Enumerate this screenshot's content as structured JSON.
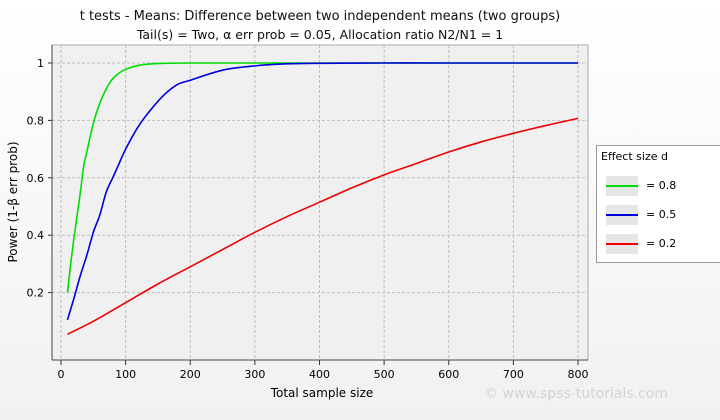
{
  "chart_data": {
    "type": "line",
    "title": "t tests - Means: Difference between two independent means (two groups)",
    "subtitle": "Tail(s) = Two, α err prob = 0.05, Allocation ratio N2/N1 = 1",
    "xlabel": "Total sample size",
    "ylabel": "Power (1-β err prob)",
    "xlim": [
      0,
      800
    ],
    "ylim": [
      0,
      1
    ],
    "xticks": [
      0,
      100,
      200,
      300,
      400,
      500,
      600,
      700,
      800
    ],
    "yticks": [
      0.2,
      0.4,
      0.6,
      0.8,
      1
    ],
    "grid": true,
    "legend_title": "Effect size d",
    "legend_position": "right",
    "series": [
      {
        "name": "= 0.8",
        "color": "#00dd00",
        "x": [
          10,
          15,
          20,
          25,
          30,
          35,
          40,
          50,
          60,
          70,
          80,
          90,
          100,
          120,
          140,
          160,
          200,
          300,
          400,
          600,
          800
        ],
        "y": [
          0.2,
          0.3,
          0.39,
          0.47,
          0.55,
          0.64,
          0.69,
          0.79,
          0.86,
          0.91,
          0.945,
          0.965,
          0.978,
          0.992,
          0.997,
          0.999,
          1.0,
          1.0,
          1.0,
          1.0,
          1.0
        ]
      },
      {
        "name": "= 0.5",
        "color": "#0000dd",
        "x": [
          10,
          20,
          30,
          40,
          50,
          60,
          70,
          80,
          90,
          100,
          120,
          140,
          160,
          180,
          200,
          250,
          300,
          350,
          400,
          500,
          600,
          800
        ],
        "y": [
          0.105,
          0.18,
          0.26,
          0.33,
          0.41,
          0.47,
          0.55,
          0.6,
          0.65,
          0.7,
          0.78,
          0.84,
          0.89,
          0.925,
          0.94,
          0.975,
          0.99,
          0.997,
          0.999,
          1.0,
          1.0,
          1.0
        ]
      },
      {
        "name": "= 0.2",
        "color": "#ee0000",
        "x": [
          10,
          50,
          100,
          150,
          200,
          250,
          300,
          350,
          400,
          450,
          500,
          550,
          600,
          650,
          700,
          750,
          800
        ],
        "y": [
          0.055,
          0.1,
          0.165,
          0.23,
          0.29,
          0.35,
          0.41,
          0.465,
          0.515,
          0.565,
          0.61,
          0.65,
          0.69,
          0.725,
          0.755,
          0.782,
          0.807
        ]
      }
    ]
  },
  "watermark": "© www.spss-tutorials.com"
}
